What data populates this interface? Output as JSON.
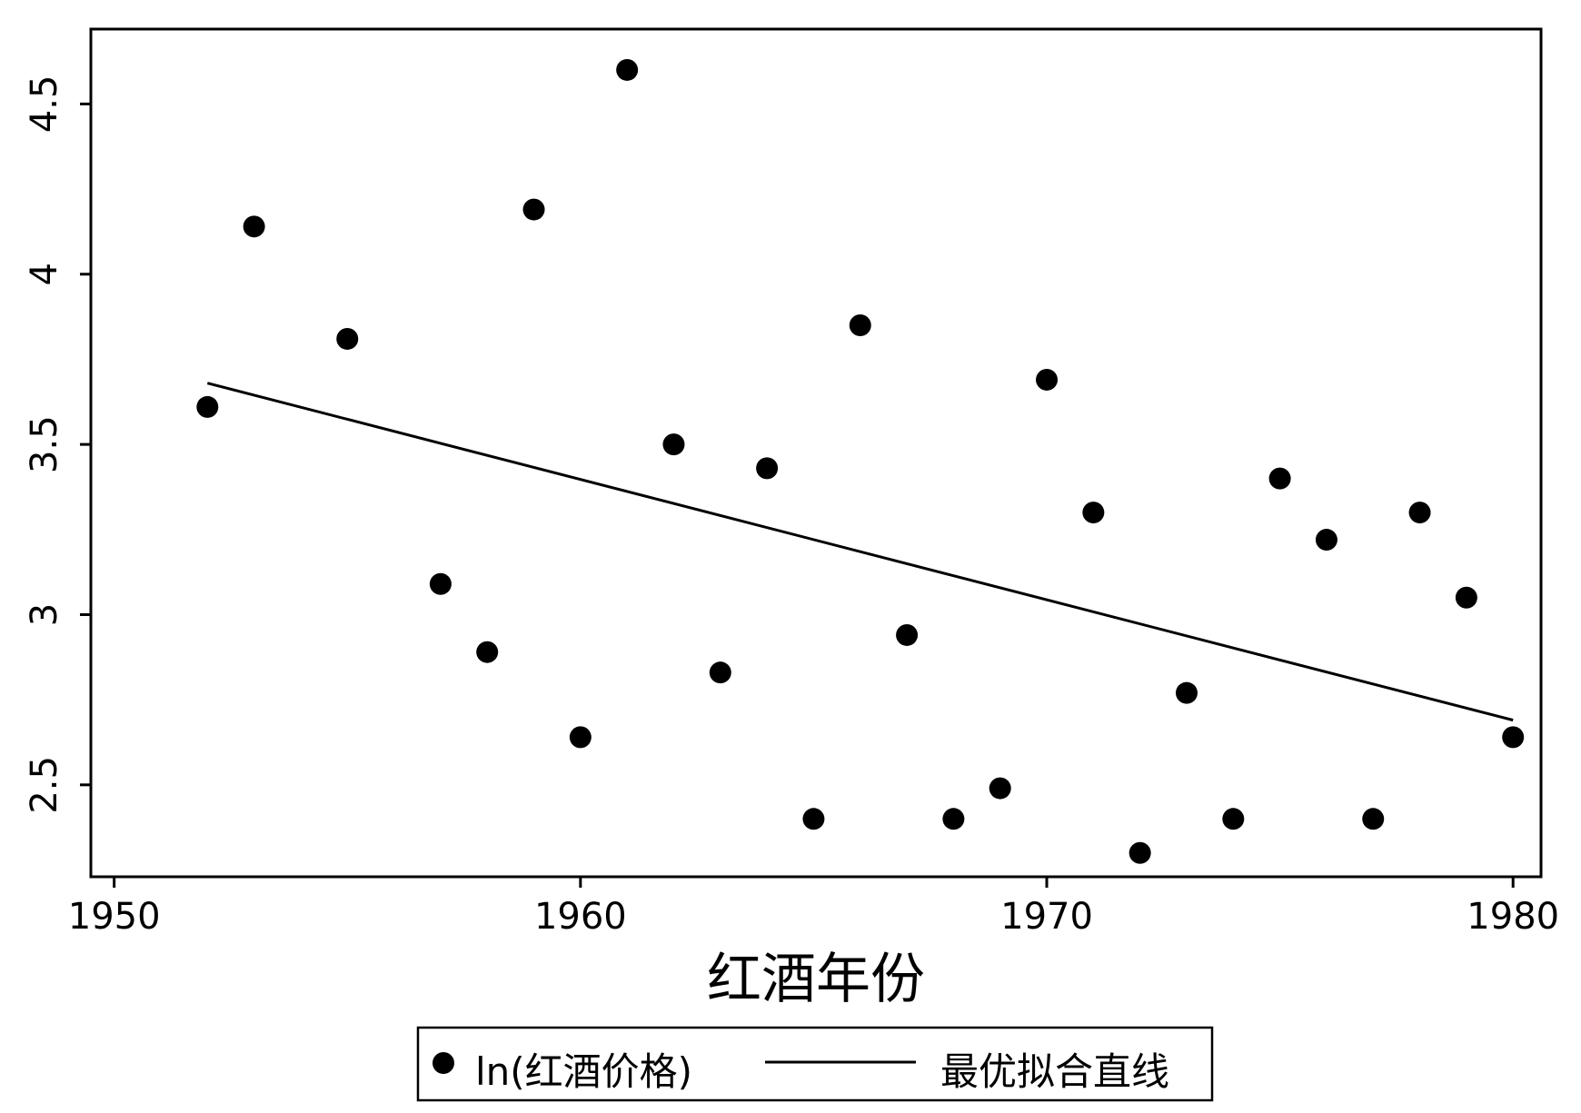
{
  "chart_data": {
    "type": "scatter",
    "title": "",
    "xlabel": "红酒年份",
    "ylabel": "",
    "xlim": [
      1949.5,
      1980.6
    ],
    "ylim": [
      2.23,
      4.72
    ],
    "x_ticks": [
      1950,
      1960,
      1970,
      1980
    ],
    "x_tick_labels": [
      "1950",
      "1960",
      "1970",
      "1980"
    ],
    "y_ticks": [
      2.5,
      3,
      3.5,
      4,
      4.5
    ],
    "y_tick_labels": [
      "2.5",
      "3",
      "3.5",
      "4",
      "4.5"
    ],
    "grid": false,
    "legend_position": "bottom",
    "series": [
      {
        "name": "ln(红酒价格)",
        "kind": "scatter",
        "x": [
          1952,
          1953,
          1955,
          1957,
          1958,
          1959,
          1960,
          1961,
          1962,
          1963,
          1964,
          1965,
          1966,
          1967,
          1968,
          1969,
          1970,
          1971,
          1972,
          1973,
          1974,
          1975,
          1976,
          1977,
          1978,
          1979,
          1980
        ],
        "y": [
          3.61,
          4.14,
          3.81,
          3.09,
          2.89,
          4.19,
          2.64,
          4.6,
          3.5,
          2.83,
          3.43,
          2.4,
          3.85,
          2.94,
          2.4,
          2.49,
          3.69,
          3.3,
          2.3,
          2.77,
          2.4,
          3.4,
          3.22,
          2.4,
          3.3,
          3.05,
          2.64
        ]
      },
      {
        "name": "最优拟合直线",
        "kind": "line",
        "x": [
          1952,
          1980
        ],
        "y": [
          3.68,
          2.69
        ]
      }
    ]
  }
}
